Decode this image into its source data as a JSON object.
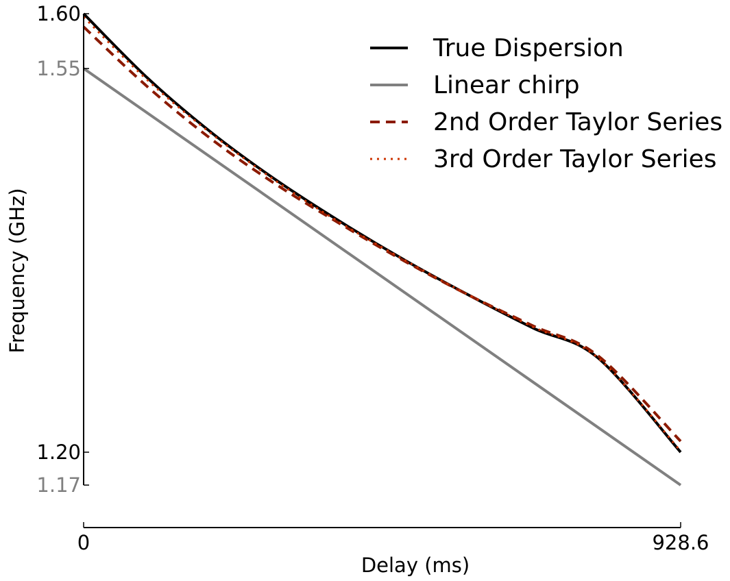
{
  "chart_data": {
    "type": "line",
    "title": "",
    "xlabel": "Delay (ms)",
    "ylabel": "Frequency (GHz)",
    "xlim": [
      0,
      928.6
    ],
    "ylim": [
      1.17,
      1.6
    ],
    "grid": false,
    "legend_position": "top-right",
    "x_ticks": [
      {
        "value": 0,
        "label": "0",
        "color": "#000000"
      },
      {
        "value": 928.6,
        "label": "928.6",
        "color": "#000000"
      }
    ],
    "y_ticks": [
      {
        "value": 1.6,
        "label": "1.60",
        "color": "#000000"
      },
      {
        "value": 1.55,
        "label": "1.55",
        "color": "#808080"
      },
      {
        "value": 1.2,
        "label": "1.20",
        "color": "#000000"
      },
      {
        "value": 1.17,
        "label": "1.17",
        "color": "#808080"
      }
    ],
    "series": [
      {
        "name": "True Dispersion",
        "color": "#000000",
        "dash": "solid",
        "x": [
          0,
          100,
          200,
          300,
          400,
          500,
          600,
          700,
          800,
          928.6
        ],
        "y": [
          1.6,
          1.541,
          1.491,
          1.448,
          1.41,
          1.375,
          1.343,
          1.313,
          1.286,
          1.2
        ]
      },
      {
        "name": "Linear chirp",
        "color": "#808080",
        "dash": "solid",
        "x": [
          0,
          928.6
        ],
        "y": [
          1.55,
          1.17
        ]
      },
      {
        "name": "2nd Order Taylor Series",
        "color": "#8b1a00",
        "dash": "dashed",
        "x": [
          0,
          100,
          200,
          300,
          400,
          500,
          600,
          700,
          800,
          928.6
        ],
        "y": [
          1.588,
          1.533,
          1.485,
          1.444,
          1.408,
          1.374,
          1.343,
          1.315,
          1.288,
          1.21
        ]
      },
      {
        "name": "3rd Order Taylor Series",
        "color": "#cc3300",
        "dash": "dotted",
        "x": [
          0,
          100,
          200,
          300,
          400,
          500,
          600,
          700,
          800,
          928.6
        ],
        "y": [
          1.597,
          1.539,
          1.49,
          1.447,
          1.409,
          1.375,
          1.343,
          1.314,
          1.286,
          1.201
        ]
      }
    ]
  }
}
